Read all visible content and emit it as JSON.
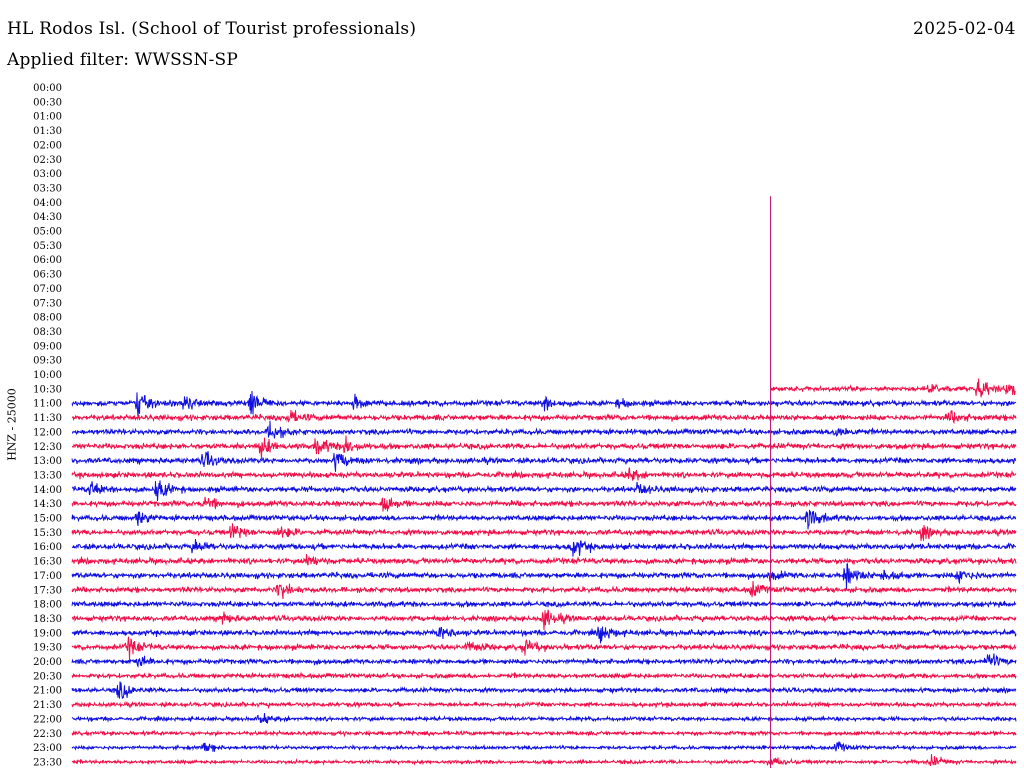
{
  "header": {
    "station": "HL Rodos Isl. (School of Tourist professionals)",
    "date": "2025-02-04",
    "filter": "Applied filter: WWSSN-SP"
  },
  "chart_data": {
    "type": "line",
    "title": "HL Rodos Isl. (School of Tourist professionals)",
    "ylabel": "HNZ - 25000",
    "xlabel": "",
    "categories": [
      "00:00",
      "00:30",
      "01:00",
      "01:30",
      "02:00",
      "02:30",
      "03:00",
      "03:30",
      "04:00",
      "04:30",
      "05:00",
      "05:30",
      "06:00",
      "06:30",
      "07:00",
      "07:30",
      "08:00",
      "08:30",
      "09:00",
      "09:30",
      "10:00",
      "10:30",
      "11:00",
      "11:30",
      "12:00",
      "12:30",
      "13:00",
      "13:30",
      "14:00",
      "14:30",
      "15:00",
      "15:30",
      "16:00",
      "16:30",
      "17:00",
      "17:30",
      "18:00",
      "18:30",
      "19:00",
      "19:30",
      "20:00",
      "20:30",
      "21:00",
      "21:30",
      "22:00",
      "22:30",
      "23:00",
      "23:30"
    ],
    "data_start_row": "10:30",
    "data_start_fraction": 0.74,
    "spike_row": "04:00",
    "colors": {
      "blue": "#1010e0",
      "red": "#f0104a",
      "spike": "#c0106a"
    },
    "noise_amplitude": [
      0,
      0,
      0,
      0,
      0,
      0,
      0,
      0,
      0,
      0,
      0,
      0,
      0,
      0,
      0,
      0,
      0,
      0,
      0,
      0,
      0,
      2.6,
      3.0,
      3.2,
      3.0,
      3.2,
      3.2,
      3.2,
      3.2,
      3.2,
      3.0,
      3.0,
      3.2,
      3.2,
      3.2,
      3.0,
      3.0,
      3.0,
      3.0,
      3.0,
      2.8,
      2.6,
      2.6,
      2.4,
      2.2,
      2.2,
      2.0,
      2.0
    ],
    "events": [
      {
        "row": "10:30",
        "x": 0.96,
        "amp": 14
      },
      {
        "row": "10:30",
        "x": 0.91,
        "amp": 6
      },
      {
        "row": "10:30",
        "x": 0.99,
        "amp": 9
      },
      {
        "row": "11:00",
        "x": 0.07,
        "amp": 17
      },
      {
        "row": "11:00",
        "x": 0.12,
        "amp": 10
      },
      {
        "row": "11:00",
        "x": 0.19,
        "amp": 17
      },
      {
        "row": "11:00",
        "x": 0.3,
        "amp": 9
      },
      {
        "row": "11:00",
        "x": 0.5,
        "amp": 9
      },
      {
        "row": "11:00",
        "x": 0.58,
        "amp": 6
      },
      {
        "row": "11:30",
        "x": 0.23,
        "amp": 8
      },
      {
        "row": "11:30",
        "x": 0.93,
        "amp": 8
      },
      {
        "row": "12:00",
        "x": 0.21,
        "amp": 12
      },
      {
        "row": "12:00",
        "x": 0.81,
        "amp": 10
      },
      {
        "row": "12:30",
        "x": 0.2,
        "amp": 12
      },
      {
        "row": "12:30",
        "x": 0.26,
        "amp": 12
      },
      {
        "row": "12:30",
        "x": 0.29,
        "amp": 10
      },
      {
        "row": "13:00",
        "x": 0.14,
        "amp": 10
      },
      {
        "row": "13:00",
        "x": 0.28,
        "amp": 12
      },
      {
        "row": "13:30",
        "x": 0.59,
        "amp": 8
      },
      {
        "row": "14:00",
        "x": 0.02,
        "amp": 10
      },
      {
        "row": "14:00",
        "x": 0.09,
        "amp": 14
      },
      {
        "row": "14:00",
        "x": 0.6,
        "amp": 8
      },
      {
        "row": "14:30",
        "x": 0.14,
        "amp": 10
      },
      {
        "row": "14:30",
        "x": 0.33,
        "amp": 12
      },
      {
        "row": "15:00",
        "x": 0.07,
        "amp": 10
      },
      {
        "row": "15:00",
        "x": 0.78,
        "amp": 14
      },
      {
        "row": "15:30",
        "x": 0.17,
        "amp": 11
      },
      {
        "row": "15:30",
        "x": 0.22,
        "amp": 8
      },
      {
        "row": "15:30",
        "x": 0.9,
        "amp": 8
      },
      {
        "row": "16:00",
        "x": 0.13,
        "amp": 9
      },
      {
        "row": "16:00",
        "x": 0.53,
        "amp": 13
      },
      {
        "row": "16:30",
        "x": 0.25,
        "amp": 8
      },
      {
        "row": "17:00",
        "x": 0.74,
        "amp": 7
      },
      {
        "row": "17:00",
        "x": 0.82,
        "amp": 15
      },
      {
        "row": "17:00",
        "x": 0.86,
        "amp": 10
      },
      {
        "row": "17:00",
        "x": 0.94,
        "amp": 9
      },
      {
        "row": "17:30",
        "x": 0.22,
        "amp": 11
      },
      {
        "row": "17:30",
        "x": 0.72,
        "amp": 10
      },
      {
        "row": "18:30",
        "x": 0.16,
        "amp": 8
      },
      {
        "row": "18:30",
        "x": 0.5,
        "amp": 14
      },
      {
        "row": "19:00",
        "x": 0.39,
        "amp": 10
      },
      {
        "row": "19:00",
        "x": 0.56,
        "amp": 12
      },
      {
        "row": "19:30",
        "x": 0.06,
        "amp": 12
      },
      {
        "row": "19:30",
        "x": 0.42,
        "amp": 8
      },
      {
        "row": "19:30",
        "x": 0.48,
        "amp": 10
      },
      {
        "row": "20:00",
        "x": 0.07,
        "amp": 9
      },
      {
        "row": "20:00",
        "x": 0.97,
        "amp": 12
      },
      {
        "row": "21:00",
        "x": 0.05,
        "amp": 13
      },
      {
        "row": "22:00",
        "x": 0.2,
        "amp": 6
      },
      {
        "row": "23:00",
        "x": 0.14,
        "amp": 6
      },
      {
        "row": "23:00",
        "x": 0.81,
        "amp": 7
      },
      {
        "row": "23:30",
        "x": 0.74,
        "amp": 7
      },
      {
        "row": "23:30",
        "x": 0.91,
        "amp": 7
      }
    ]
  }
}
